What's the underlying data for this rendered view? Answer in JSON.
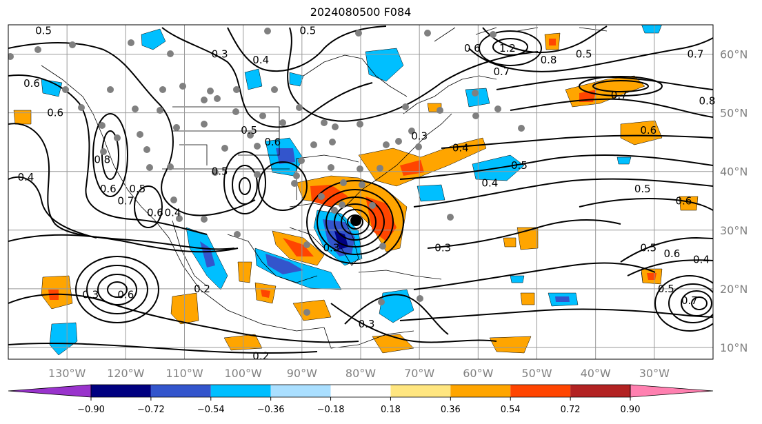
{
  "map": {
    "title": "2024080500 F084",
    "extent": {
      "lon_min": -140,
      "lon_max": -20,
      "lat_min": 8,
      "lat_max": 65
    },
    "lon_ticks": [
      {
        "lon": -130,
        "label": "130°W"
      },
      {
        "lon": -120,
        "label": "120°W"
      },
      {
        "lon": -110,
        "label": "110°W"
      },
      {
        "lon": -100,
        "label": "100°W"
      },
      {
        "lon": -90,
        "label": "90°W"
      },
      {
        "lon": -80,
        "label": "80°W"
      },
      {
        "lon": -70,
        "label": "70°W"
      },
      {
        "lon": -60,
        "label": "60°W"
      },
      {
        "lon": -50,
        "label": "50°W"
      },
      {
        "lon": -40,
        "label": "40°W"
      },
      {
        "lon": -30,
        "label": "30°W"
      }
    ],
    "lat_ticks": [
      {
        "lat": 60,
        "label": "60°N"
      },
      {
        "lat": 50,
        "label": "50°N"
      },
      {
        "lat": 40,
        "label": "40°N"
      },
      {
        "lat": 30,
        "label": "30°N"
      },
      {
        "lat": 20,
        "label": "20°N"
      },
      {
        "lat": 10,
        "label": "10°N"
      }
    ],
    "grid": true,
    "colorbar": {
      "ticks": [
        "−0.90",
        "−0.72",
        "−0.54",
        "−0.36",
        "−0.18",
        "0.18",
        "0.36",
        "0.54",
        "0.72",
        "0.90"
      ],
      "colors": [
        "#9933cc",
        "#000080",
        "#3355cc",
        "#00bfff",
        "#aadfff",
        "#ffffff",
        "#ffe680",
        "#ffa500",
        "#ff4500",
        "#b22222",
        "#ff80b0"
      ],
      "extend": "both"
    },
    "contour_labels": [
      {
        "text": "0.5",
        "lon": -134,
        "lat": 64
      },
      {
        "text": "0.3",
        "lon": -104,
        "lat": 60
      },
      {
        "text": "0.4",
        "lon": -97,
        "lat": 59
      },
      {
        "text": "0.5",
        "lon": -89,
        "lat": 64
      },
      {
        "text": "0.6",
        "lon": -61,
        "lat": 61
      },
      {
        "text": "1.2",
        "lon": -55,
        "lat": 61
      },
      {
        "text": "0.8",
        "lon": -48,
        "lat": 59
      },
      {
        "text": "0.5",
        "lon": -42,
        "lat": 60
      },
      {
        "text": "0.7",
        "lon": -56,
        "lat": 57
      },
      {
        "text": "0.7",
        "lon": -23,
        "lat": 60
      },
      {
        "text": "0.7",
        "lon": -36,
        "lat": 53
      },
      {
        "text": "0.8",
        "lon": -21,
        "lat": 52
      },
      {
        "text": "0.6",
        "lon": -136,
        "lat": 55
      },
      {
        "text": "0.6",
        "lon": -132,
        "lat": 50
      },
      {
        "text": "0.6",
        "lon": -31,
        "lat": 47
      },
      {
        "text": "0.6",
        "lon": -95,
        "lat": 45
      },
      {
        "text": "0.5",
        "lon": -99,
        "lat": 47
      },
      {
        "text": "0.5",
        "lon": -53,
        "lat": 41
      },
      {
        "text": "0.4",
        "lon": -63,
        "lat": 44
      },
      {
        "text": "0.3",
        "lon": -70,
        "lat": 46
      },
      {
        "text": "0.4",
        "lon": -58,
        "lat": 38
      },
      {
        "text": "0.4",
        "lon": -137,
        "lat": 39
      },
      {
        "text": "0.8",
        "lon": -124,
        "lat": 42
      },
      {
        "text": "0.6",
        "lon": -123,
        "lat": 37
      },
      {
        "text": "0.7",
        "lon": -120,
        "lat": 35
      },
      {
        "text": "0.5",
        "lon": -118,
        "lat": 37
      },
      {
        "text": "0.4",
        "lon": -112,
        "lat": 33
      },
      {
        "text": "0.6",
        "lon": -115,
        "lat": 33
      },
      {
        "text": "0.5",
        "lon": -104,
        "lat": 40
      },
      {
        "text": "0.5",
        "lon": -32,
        "lat": 37
      },
      {
        "text": "0.6",
        "lon": -25,
        "lat": 35
      },
      {
        "text": "0.3",
        "lon": -85,
        "lat": 27
      },
      {
        "text": "0.3",
        "lon": -66,
        "lat": 27
      },
      {
        "text": "0.5",
        "lon": -31,
        "lat": 27
      },
      {
        "text": "0.6",
        "lon": -27,
        "lat": 26
      },
      {
        "text": "0.4",
        "lon": -22,
        "lat": 25
      },
      {
        "text": "0.3",
        "lon": -126,
        "lat": 19
      },
      {
        "text": "0.6",
        "lon": -120,
        "lat": 19
      },
      {
        "text": "0.2",
        "lon": -107,
        "lat": 20
      },
      {
        "text": "0.5",
        "lon": -28,
        "lat": 20
      },
      {
        "text": "0.7",
        "lon": -24,
        "lat": 18
      },
      {
        "text": "0.3",
        "lon": -79,
        "lat": 14
      },
      {
        "text": "0.2",
        "lon": -97,
        "lat": 8.5
      }
    ]
  }
}
